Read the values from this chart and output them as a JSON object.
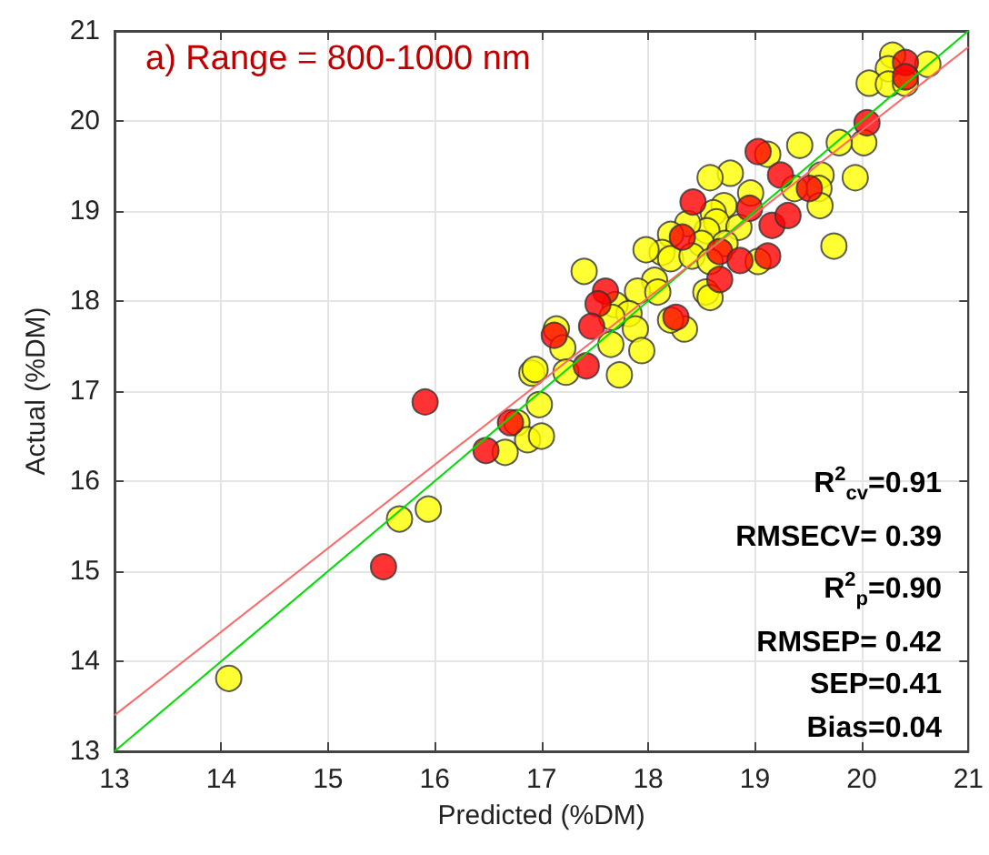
{
  "chart_data": {
    "type": "scatter",
    "title": "a) Range = 800-1000 nm",
    "xlabel": "Predicted (%DM)",
    "ylabel": "Actual (%DM)",
    "xlim": [
      13,
      21
    ],
    "ylim": [
      13,
      21
    ],
    "xticks": [
      13,
      14,
      15,
      16,
      17,
      18,
      19,
      20,
      21
    ],
    "yticks": [
      13,
      14,
      15,
      16,
      17,
      18,
      19,
      20,
      21
    ],
    "grid": true,
    "marker": "circle",
    "annotations": [
      "R$^{2}$$_{cv}$=0.91",
      "RMSECV= 0.39",
      "R$^{2}$$_{p}$=0.90",
      "RMSEP= 0.42",
      "SEP=0.41",
      "Bias=0.04"
    ],
    "series": [
      {
        "color": "#ffff00",
        "x": [
          14.07,
          15.67,
          15.94,
          16.66,
          16.77,
          16.87,
          16.91,
          16.98,
          17.0,
          20.29,
          20.25,
          20.62,
          20.07,
          20.25,
          20.41,
          20.02,
          19.79,
          19.42,
          19.12,
          19.94,
          19.62,
          19.6,
          19.61,
          19.37,
          19.74,
          18.77,
          18.58,
          18.96,
          18.71,
          18.61,
          18.64,
          18.55,
          18.85,
          18.37,
          18.21,
          18.72,
          18.5,
          18.13,
          17.98,
          18.21,
          18.41,
          18.58,
          19.03,
          17.4,
          18.06,
          17.9,
          18.09,
          18.54,
          18.58,
          17.69,
          17.82,
          17.66,
          17.88,
          18.34,
          18.21,
          17.65,
          17.94,
          17.14,
          17.2,
          16.94,
          17.73,
          17.23
        ],
        "values": [
          13.81,
          15.58,
          15.69,
          16.32,
          16.65,
          16.46,
          17.2,
          16.85,
          16.5,
          20.73,
          20.58,
          20.63,
          20.42,
          20.41,
          20.42,
          19.76,
          19.76,
          19.73,
          19.63,
          19.37,
          19.4,
          19.25,
          19.06,
          19.25,
          18.61,
          19.42,
          19.37,
          19.2,
          19.06,
          18.98,
          18.88,
          18.78,
          18.82,
          18.86,
          18.74,
          18.64,
          18.64,
          18.54,
          18.57,
          18.47,
          18.5,
          18.44,
          18.44,
          18.33,
          18.23,
          18.11,
          18.1,
          18.1,
          18.04,
          17.96,
          17.86,
          17.82,
          17.69,
          17.69,
          17.79,
          17.52,
          17.45,
          17.69,
          17.48,
          17.24,
          17.18,
          17.21
        ]
      },
      {
        "color": "#ff0000",
        "x": [
          20.41,
          20.41,
          20.05,
          19.03,
          19.24,
          19.51,
          18.42,
          18.95,
          19.16,
          19.31,
          18.32,
          18.67,
          18.86,
          19.12,
          18.67,
          17.6,
          17.53,
          17.47,
          17.12,
          18.26,
          17.42,
          15.91,
          15.52,
          16.48,
          16.71
        ],
        "values": [
          20.65,
          20.49,
          19.98,
          19.66,
          19.4,
          19.25,
          19.1,
          19.03,
          18.84,
          18.95,
          18.71,
          18.55,
          18.45,
          18.5,
          18.24,
          18.11,
          17.97,
          17.72,
          17.62,
          17.82,
          17.28,
          16.88,
          15.05,
          16.34,
          16.65
        ]
      },
      {
        "type": "line",
        "color": "#00dd00",
        "marker": "none",
        "x": [
          13,
          21
        ],
        "values": [
          13,
          21
        ]
      },
      {
        "type": "line",
        "color": "#ff6666",
        "marker": "none",
        "x": [
          13,
          21
        ],
        "values": [
          13.4,
          20.82
        ]
      }
    ]
  }
}
